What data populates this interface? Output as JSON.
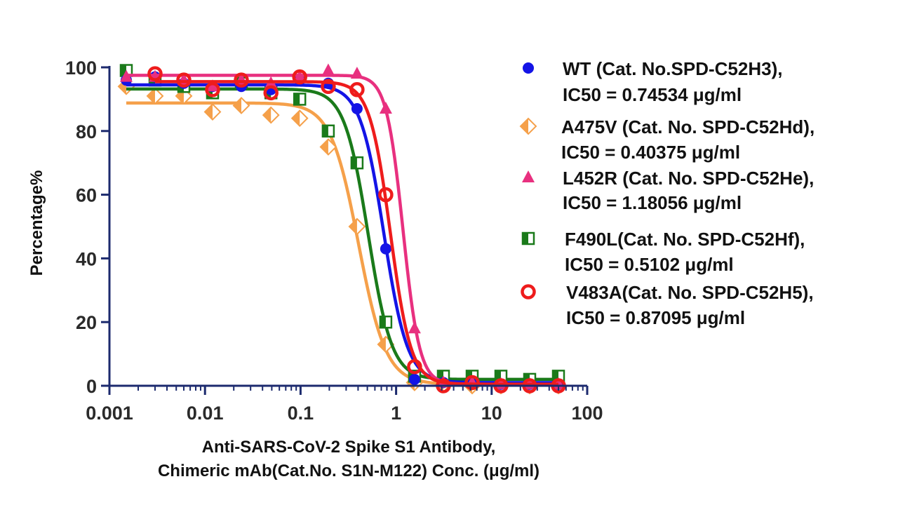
{
  "chart_data": {
    "type": "scatter",
    "title": "",
    "xlabel_lines": [
      "Anti-SARS-CoV-2 Spike S1 Antibody,",
      "Chimeric mAb(Cat.No. S1N-M122) Conc. (μg/ml)"
    ],
    "ylabel": "Percentage%",
    "x_scale": "log",
    "xlim": [
      0.001,
      100
    ],
    "ylim": [
      0,
      100
    ],
    "x_ticks": [
      0.001,
      0.01,
      0.1,
      1,
      10,
      100
    ],
    "x_tick_labels": [
      "0.001",
      "0.01",
      "0.1",
      "1",
      "10",
      "100"
    ],
    "y_ticks": [
      0,
      20,
      40,
      60,
      80,
      100
    ],
    "y_tick_labels": [
      "0",
      "20",
      "40",
      "60",
      "80",
      "100"
    ],
    "legend_position": "right",
    "series": [
      {
        "name": "WT (Cat. No.SPD-C52H3),",
        "ic50_label": "IC50 = 0.74534 μg/ml",
        "color": "#1414e6",
        "marker": "circle",
        "fit": {
          "top": 94.5,
          "bottom": 1.0,
          "ic50": 0.74534,
          "hill": 3.5
        },
        "x": [
          0.0015,
          0.003,
          0.006,
          0.012,
          0.024,
          0.049,
          0.098,
          0.195,
          0.39,
          0.78,
          1.56,
          3.125,
          6.25,
          12.5,
          25,
          50
        ],
        "y": [
          96,
          97,
          95,
          94,
          94,
          93,
          96,
          95,
          87,
          43,
          2,
          1,
          1,
          0.5,
          0.5,
          0.5
        ]
      },
      {
        "name": "A475V (Cat. No. SPD-C52Hd),",
        "ic50_label": "IC50 = 0.40375 μg/ml",
        "color": "#f5a04a",
        "marker": "diamond",
        "fit": {
          "top": 88.8,
          "bottom": 0.5,
          "ic50": 0.40375,
          "hill": 3.0
        },
        "x": [
          0.0015,
          0.003,
          0.006,
          0.012,
          0.024,
          0.049,
          0.098,
          0.195,
          0.39,
          0.78,
          1.56,
          3.125,
          6.25,
          12.5,
          25,
          50
        ],
        "y": [
          94,
          91,
          91,
          86,
          88,
          85,
          84,
          75,
          50,
          13,
          1,
          0.5,
          0,
          0,
          0,
          0
        ]
      },
      {
        "name": "L452R (Cat. No. SPD-C52He),",
        "ic50_label": "IC50 = 1.18056 μg/ml",
        "color": "#e8307f",
        "marker": "triangle",
        "fit": {
          "top": 97.5,
          "bottom": 0.5,
          "ic50": 1.18056,
          "hill": 5.0
        },
        "x": [
          0.0015,
          0.003,
          0.006,
          0.012,
          0.024,
          0.049,
          0.098,
          0.195,
          0.39,
          0.78,
          1.56,
          3.125,
          6.25,
          12.5,
          25,
          50
        ],
        "y": [
          97,
          97,
          96,
          94,
          96,
          95,
          97,
          99,
          98,
          87,
          18,
          1,
          1,
          0.5,
          0.5,
          0.5
        ]
      },
      {
        "name": "F490L(Cat. No. SPD-C52Hf),",
        "ic50_label": "IC50 = 0.5102 μg/ml",
        "color": "#1a7a1a",
        "marker": "square-half",
        "fit": {
          "top": 93.2,
          "bottom": 2.0,
          "ic50": 0.5102,
          "hill": 3.5
        },
        "x": [
          0.0015,
          0.003,
          0.006,
          0.012,
          0.024,
          0.049,
          0.098,
          0.195,
          0.39,
          0.78,
          1.56,
          3.125,
          6.25,
          12.5,
          25,
          50
        ],
        "y": [
          99,
          96,
          94,
          92,
          95,
          92,
          90,
          80,
          70,
          20,
          3,
          3,
          3,
          3,
          2,
          3
        ]
      },
      {
        "name": "V483A(Cat. No. SPD-C52H5),",
        "ic50_label": "IC50 = 0.87095 μg/ml",
        "color": "#ee1c1c",
        "marker": "ring",
        "fit": {
          "top": 95.5,
          "bottom": 0.5,
          "ic50": 0.87095,
          "hill": 4.0
        },
        "x": [
          0.003,
          0.006,
          0.012,
          0.024,
          0.049,
          0.098,
          0.195,
          0.39,
          0.78,
          1.56,
          3.125,
          6.25,
          12.5,
          25,
          50
        ],
        "y": [
          98,
          96,
          93,
          96,
          92,
          97,
          94,
          93,
          60,
          6,
          0,
          1,
          0,
          0,
          0
        ]
      }
    ]
  }
}
